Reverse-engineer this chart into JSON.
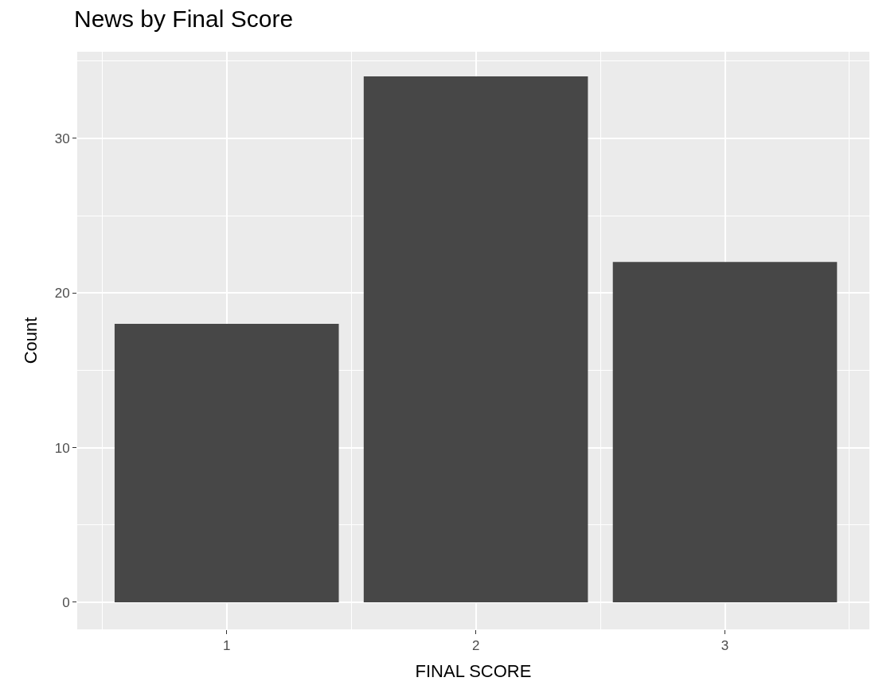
{
  "chart_data": {
    "type": "bar",
    "title": "News by Final Score",
    "xlabel": "FINAL SCORE",
    "ylabel": "Count",
    "x": [
      1,
      2,
      3
    ],
    "values": [
      18,
      34,
      22
    ],
    "color": "#474747",
    "xlim": [
      0.4,
      3.58
    ],
    "xticks": [
      1,
      2,
      3
    ],
    "ylim": [
      -1.75,
      35.6
    ],
    "yticks": [
      0,
      10,
      20,
      30
    ],
    "grid": true
  }
}
